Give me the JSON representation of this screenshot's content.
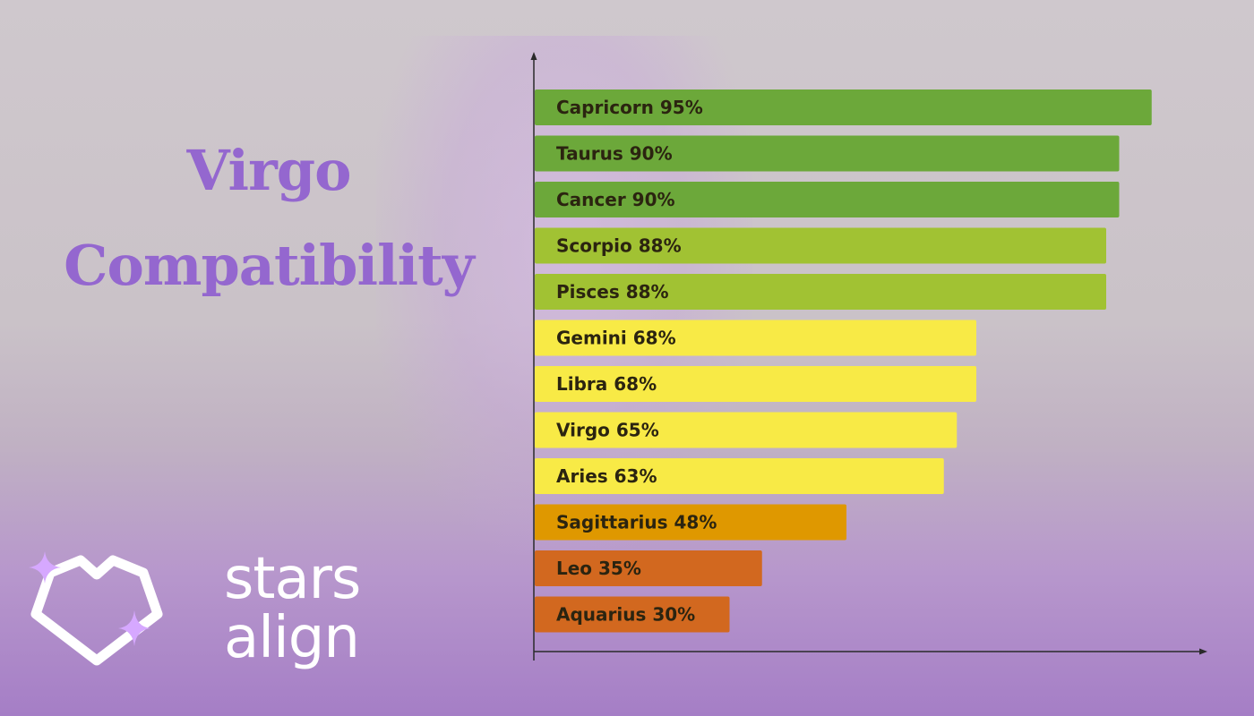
{
  "headline": {
    "line1": "Virgo",
    "line2": "Compatibility"
  },
  "brand": {
    "line1": "stars",
    "line2": "align",
    "logo_icon": "heart-outline-sparkle-icon",
    "text_color": "#ffffff",
    "sparkle_color": "#d6a8ff"
  },
  "colors": {
    "green": "#6ca83a",
    "lime": "#a1c233",
    "yellow": "#f8ea46",
    "amber": "#df9800",
    "orange": "#d2681f",
    "headline": "#9467cf"
  },
  "chart_data": {
    "type": "bar",
    "orientation": "horizontal",
    "xlim": [
      0,
      100
    ],
    "grid": false,
    "legend": "none",
    "series": [
      {
        "values": [
          95,
          90,
          90,
          88,
          88,
          68,
          68,
          65,
          63,
          48,
          35,
          30
        ]
      }
    ],
    "categories": [
      "Capricorn",
      "Taurus",
      "Cancer",
      "Scorpio",
      "Pisces",
      "Gemini",
      "Libra",
      "Virgo",
      "Aries",
      "Sagittarius",
      "Leo",
      "Aquarius"
    ],
    "labels": [
      "Capricorn 95%",
      "Taurus 90%",
      "Cancer 90%",
      "Scorpio 88%",
      "Pisces 88%",
      "Gemini 68%",
      "Libra 68%",
      "Virgo 65%",
      "Aries 63%",
      "Sagittarius 48%",
      "Leo 35%",
      "Aquarius 30%"
    ],
    "bar_colors": [
      "#6ca83a",
      "#6ca83a",
      "#6ca83a",
      "#a1c233",
      "#a1c233",
      "#f8ea46",
      "#f8ea46",
      "#f8ea46",
      "#f8ea46",
      "#df9800",
      "#d2681f",
      "#d2681f"
    ]
  }
}
